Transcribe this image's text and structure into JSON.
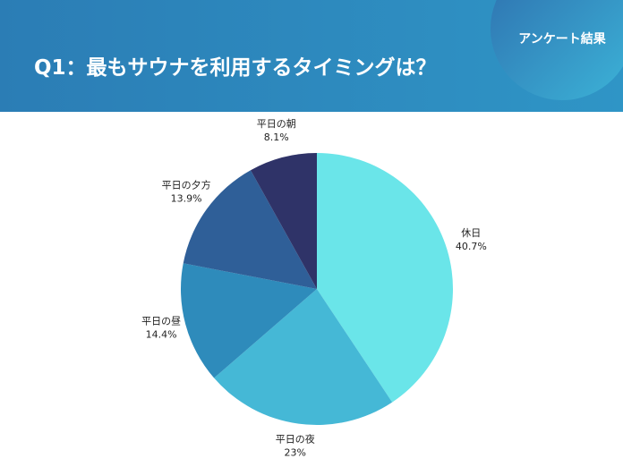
{
  "header": {
    "title": "Q1：最もサウナを利用するタイミングは？",
    "badge": "アンケート結果"
  },
  "chart_data": {
    "type": "pie",
    "categories": [
      "休日",
      "平日の夜",
      "平日の昼",
      "平日の夕方",
      "平日の朝"
    ],
    "values": [
      40.7,
      23,
      14.4,
      13.9,
      8.1
    ],
    "value_labels": [
      "40.7%",
      "23%",
      "14.4%",
      "13.9%",
      "8.1%"
    ],
    "colors": [
      "#6ae5e9",
      "#45b8d6",
      "#2e8bbb",
      "#2f5f98",
      "#2f3368"
    ]
  }
}
